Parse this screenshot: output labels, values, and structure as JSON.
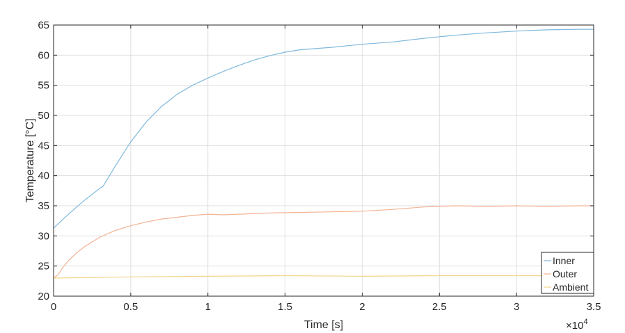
{
  "chart_data": {
    "type": "line",
    "title": "",
    "xlabel": "Time [s]",
    "ylabel": "Temperature [°C]",
    "x_multiplier": "×10",
    "x_exponent": "4",
    "xlim": [
      0,
      3.5
    ],
    "ylim": [
      20,
      65
    ],
    "x_ticks": [
      0,
      0.5,
      1,
      1.5,
      2,
      2.5,
      3,
      3.5
    ],
    "x_tick_labels": [
      "0",
      "0.5",
      "1",
      "1.5",
      "2",
      "2.5",
      "3",
      "3.5"
    ],
    "y_ticks": [
      20,
      25,
      30,
      35,
      40,
      45,
      50,
      55,
      60,
      65
    ],
    "y_tick_labels": [
      "20",
      "25",
      "30",
      "35",
      "40",
      "45",
      "50",
      "55",
      "60",
      "65"
    ],
    "grid": true,
    "legend_position": "bottom-right",
    "series": [
      {
        "name": "Inner",
        "color": "#7fb8dc",
        "x": [
          0,
          0.1,
          0.2,
          0.3,
          0.32,
          0.4,
          0.5,
          0.6,
          0.7,
          0.8,
          0.9,
          1.0,
          1.1,
          1.2,
          1.3,
          1.4,
          1.5,
          1.6,
          1.8,
          2.0,
          2.2,
          2.4,
          2.6,
          2.8,
          3.0,
          3.2,
          3.4,
          3.5
        ],
        "values": [
          31.3,
          33.7,
          35.9,
          37.9,
          38.2,
          41.6,
          45.6,
          48.9,
          51.5,
          53.5,
          55.0,
          56.2,
          57.3,
          58.3,
          59.2,
          59.9,
          60.5,
          60.9,
          61.3,
          61.8,
          62.2,
          62.8,
          63.3,
          63.7,
          64.0,
          64.2,
          64.3,
          64.3
        ]
      },
      {
        "name": "Outer",
        "color": "#f2b394",
        "x": [
          0,
          0.03,
          0.06,
          0.1,
          0.15,
          0.2,
          0.3,
          0.4,
          0.5,
          0.6,
          0.7,
          0.8,
          0.9,
          1.0,
          1.1,
          1.2,
          1.4,
          1.6,
          1.8,
          2.0,
          2.2,
          2.4,
          2.5,
          2.6,
          2.8,
          3.0,
          3.2,
          3.4,
          3.5
        ],
        "values": [
          23.0,
          23.6,
          24.8,
          26.0,
          27.2,
          28.2,
          29.8,
          30.9,
          31.7,
          32.3,
          32.8,
          33.1,
          33.4,
          33.6,
          33.5,
          33.6,
          33.8,
          33.9,
          34.0,
          34.1,
          34.4,
          34.8,
          34.9,
          35.0,
          34.9,
          35.0,
          34.9,
          35.0,
          35.0
        ]
      },
      {
        "name": "Ambient",
        "color": "#f3d58a",
        "x": [
          0,
          0.5,
          1.0,
          1.5,
          2.0,
          2.5,
          3.0,
          3.5
        ],
        "values": [
          23.0,
          23.2,
          23.3,
          23.4,
          23.3,
          23.4,
          23.4,
          23.4
        ]
      }
    ]
  }
}
